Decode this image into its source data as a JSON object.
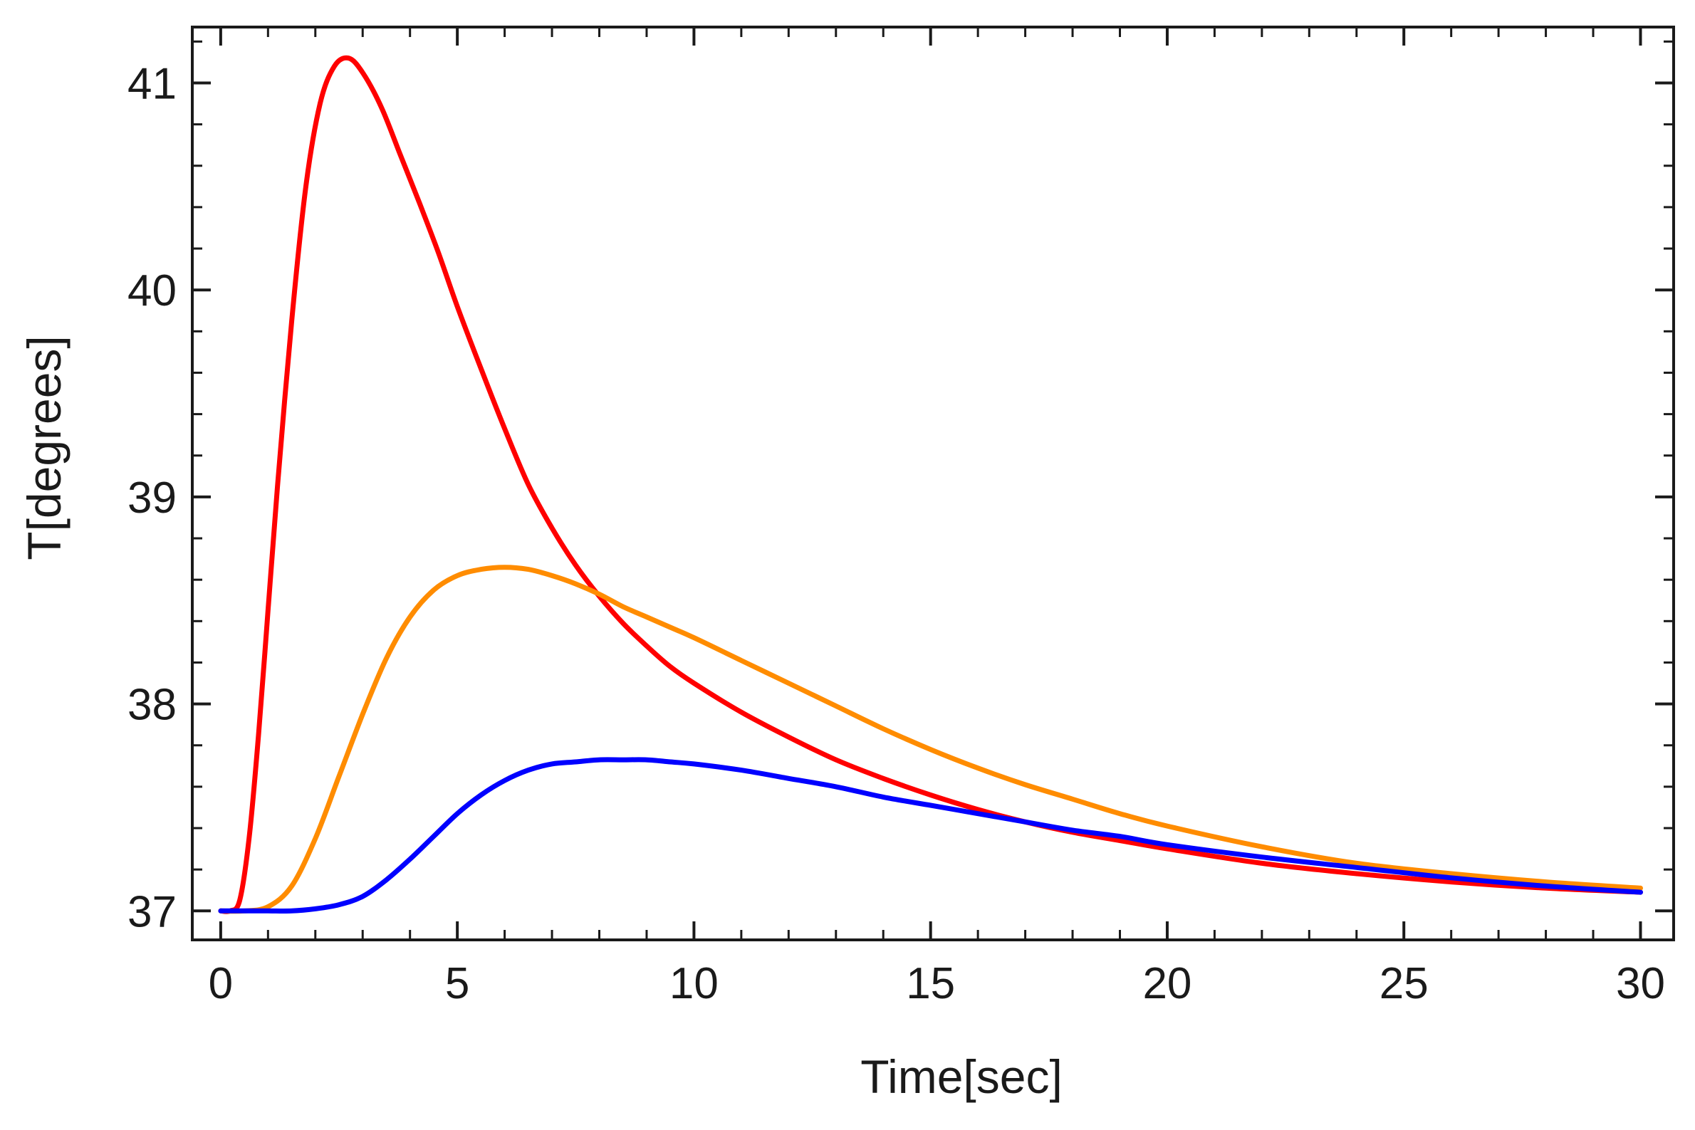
{
  "chart_data": {
    "type": "line",
    "title": "",
    "xlabel": "Time[sec]",
    "ylabel": "T[degrees]",
    "xlim": [
      -0.6,
      30.7
    ],
    "ylim": [
      36.86,
      41.27
    ],
    "xticks": [
      0,
      5,
      10,
      15,
      20,
      25,
      30
    ],
    "yticks": [
      37,
      38,
      39,
      40,
      41
    ],
    "xminor_step": 1,
    "yminor_step": 0.2,
    "grid": false,
    "legend": "none",
    "series": [
      {
        "name": "red",
        "color": "#ff0000",
        "x": [
          0,
          0.2,
          0.4,
          0.6,
          0.8,
          1.0,
          1.2,
          1.5,
          1.8,
          2.1,
          2.4,
          2.7,
          3.0,
          3.4,
          3.8,
          4.2,
          4.6,
          5.0,
          5.5,
          6.0,
          6.5,
          7.0,
          7.5,
          8.0,
          8.5,
          9.0,
          9.5,
          10.0,
          11.0,
          12.0,
          13.0,
          14.0,
          15.0,
          16.0,
          17.0,
          18.0,
          19.0,
          20.0,
          22.0,
          24.0,
          26.0,
          28.0,
          30.0
        ],
        "y": [
          37.0,
          37.0,
          37.05,
          37.35,
          37.85,
          38.45,
          39.05,
          39.85,
          40.5,
          40.9,
          41.08,
          41.12,
          41.05,
          40.88,
          40.65,
          40.42,
          40.18,
          39.92,
          39.62,
          39.33,
          39.06,
          38.85,
          38.67,
          38.52,
          38.39,
          38.28,
          38.18,
          38.1,
          37.96,
          37.84,
          37.73,
          37.64,
          37.56,
          37.49,
          37.43,
          37.38,
          37.34,
          37.3,
          37.23,
          37.18,
          37.14,
          37.11,
          37.09
        ]
      },
      {
        "name": "orange",
        "color": "#ff8c00",
        "x": [
          0,
          0.5,
          1.0,
          1.5,
          2.0,
          2.5,
          3.0,
          3.5,
          4.0,
          4.5,
          5.0,
          5.5,
          6.0,
          6.5,
          7.0,
          7.5,
          8.0,
          8.5,
          9.0,
          9.5,
          10.0,
          11.0,
          12.0,
          13.0,
          14.0,
          15.0,
          16.0,
          17.0,
          18.0,
          19.0,
          20.0,
          22.0,
          24.0,
          26.0,
          28.0,
          30.0
        ],
        "y": [
          37.0,
          37.0,
          37.02,
          37.12,
          37.35,
          37.65,
          37.95,
          38.22,
          38.42,
          38.55,
          38.62,
          38.65,
          38.66,
          38.65,
          38.62,
          38.58,
          38.53,
          38.47,
          38.42,
          38.37,
          38.32,
          38.21,
          38.1,
          37.99,
          37.88,
          37.78,
          37.69,
          37.61,
          37.54,
          37.47,
          37.41,
          37.31,
          37.23,
          37.18,
          37.14,
          37.11
        ]
      },
      {
        "name": "blue",
        "color": "#0000ff",
        "x": [
          0,
          0.5,
          1.0,
          1.5,
          2.0,
          2.5,
          3.0,
          3.5,
          4.0,
          4.5,
          5.0,
          5.5,
          6.0,
          6.5,
          7.0,
          7.5,
          8.0,
          8.5,
          9.0,
          9.5,
          10.0,
          11.0,
          12.0,
          13.0,
          14.0,
          15.0,
          16.0,
          17.0,
          18.0,
          19.0,
          20.0,
          22.0,
          24.0,
          26.0,
          28.0,
          30.0
        ],
        "y": [
          37.0,
          37.0,
          37.0,
          37.0,
          37.01,
          37.03,
          37.07,
          37.15,
          37.25,
          37.36,
          37.47,
          37.56,
          37.63,
          37.68,
          37.71,
          37.72,
          37.73,
          37.73,
          37.73,
          37.72,
          37.71,
          37.68,
          37.64,
          37.6,
          37.55,
          37.51,
          37.47,
          37.43,
          37.39,
          37.36,
          37.32,
          37.26,
          37.21,
          37.16,
          37.12,
          37.09
        ]
      }
    ]
  }
}
